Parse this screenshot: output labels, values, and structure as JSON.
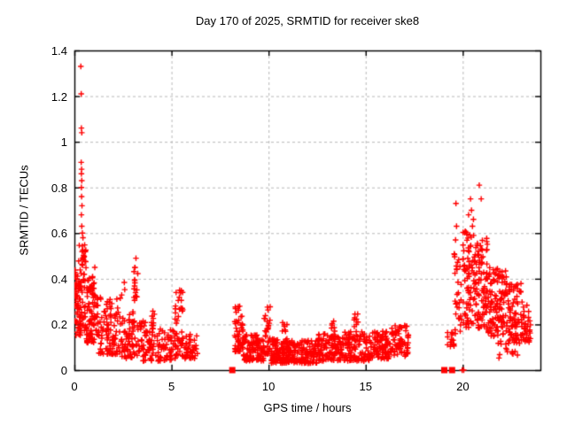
{
  "title": "Day 170 of 2025, SRMTID for receiver ske8",
  "colors": {
    "background": "#ffffff",
    "marker": "#ff0000",
    "grid": "#b9b9b9",
    "axis": "#000000",
    "text": "#000000"
  },
  "chart_data": {
    "type": "scatter",
    "title": "Day 170 of 2025, SRMTID for receiver ske8",
    "xlabel": "GPS time / hours",
    "ylabel": "SRMTID / TECUs",
    "xlim": [
      0,
      24
    ],
    "ylim": [
      0,
      1.4
    ],
    "xticks": [
      {
        "v": 0,
        "label": "0"
      },
      {
        "v": 5,
        "label": "5"
      },
      {
        "v": 10,
        "label": "10"
      },
      {
        "v": 15,
        "label": "15"
      },
      {
        "v": 20,
        "label": "20"
      }
    ],
    "yticks": [
      {
        "v": 0,
        "label": "0"
      },
      {
        "v": 0.2,
        "label": "0.2"
      },
      {
        "v": 0.4,
        "label": "0.4"
      },
      {
        "v": 0.6,
        "label": "0.6"
      },
      {
        "v": 0.8,
        "label": "0.8"
      },
      {
        "v": 1.0,
        "label": "1"
      },
      {
        "v": 1.2,
        "label": "1.2"
      },
      {
        "v": 1.4,
        "label": "1.4"
      }
    ],
    "grid": true,
    "legend": "none",
    "marker": "plus",
    "marker_color": "#ff0000",
    "seed": 42,
    "segments": [
      {
        "x0": 0.0,
        "x1": 0.15,
        "n": 22,
        "y_min": 0.2,
        "y_max": 0.47,
        "bias": 1.0
      },
      {
        "x0": 0.05,
        "x1": 0.35,
        "n": 25,
        "y_min": 0.15,
        "y_max": 0.4,
        "bias": 1.2
      },
      {
        "x0": 0.15,
        "x1": 0.6,
        "n": 45,
        "y_min": 0.15,
        "y_max": 0.55,
        "bias": 1.4
      },
      {
        "x0": 0.3,
        "x1": 0.6,
        "n": 20,
        "y_min": 0.35,
        "y_max": 0.55,
        "bias": 1.0
      },
      {
        "x0": 0.6,
        "x1": 1.2,
        "n": 85,
        "y_min": 0.12,
        "y_max": 0.42,
        "bias": 1.6
      },
      {
        "x0": 1.2,
        "x1": 2.2,
        "n": 95,
        "y_min": 0.07,
        "y_max": 0.32,
        "bias": 1.7
      },
      {
        "x0": 2.2,
        "x1": 2.6,
        "n": 30,
        "y_min": 0.06,
        "y_max": 0.42,
        "bias": 1.8
      },
      {
        "x0": 2.6,
        "x1": 3.0,
        "n": 35,
        "y_min": 0.05,
        "y_max": 0.25,
        "bias": 1.5
      },
      {
        "x0": 3.0,
        "x1": 3.3,
        "n": 18,
        "y_min": 0.22,
        "y_max": 0.45,
        "bias": 1.0
      },
      {
        "x0": 3.0,
        "x1": 3.4,
        "n": 25,
        "y_min": 0.06,
        "y_max": 0.22,
        "bias": 1.3
      },
      {
        "x0": 3.4,
        "x1": 4.1,
        "n": 55,
        "y_min": 0.04,
        "y_max": 0.22,
        "bias": 1.5
      },
      {
        "x0": 3.9,
        "x1": 4.15,
        "n": 12,
        "y_min": 0.1,
        "y_max": 0.26,
        "bias": 1.0
      },
      {
        "x0": 4.15,
        "x1": 5.1,
        "n": 55,
        "y_min": 0.04,
        "y_max": 0.18,
        "bias": 1.4
      },
      {
        "x0": 5.1,
        "x1": 5.6,
        "n": 30,
        "y_min": 0.1,
        "y_max": 0.35,
        "bias": 1.3
      },
      {
        "x0": 5.15,
        "x1": 5.6,
        "n": 20,
        "y_min": 0.05,
        "y_max": 0.15,
        "bias": 1.2
      },
      {
        "x0": 5.6,
        "x1": 6.35,
        "n": 45,
        "y_min": 0.05,
        "y_max": 0.16,
        "bias": 1.4
      },
      {
        "x0": 8.25,
        "x1": 8.7,
        "n": 55,
        "y_min": 0.08,
        "y_max": 0.28,
        "bias": 1.6
      },
      {
        "x0": 8.7,
        "x1": 9.4,
        "n": 70,
        "y_min": 0.04,
        "y_max": 0.16,
        "bias": 1.4
      },
      {
        "x0": 9.4,
        "x1": 9.75,
        "n": 35,
        "y_min": 0.04,
        "y_max": 0.14,
        "bias": 1.3
      },
      {
        "x0": 9.75,
        "x1": 10.1,
        "n": 35,
        "y_min": 0.07,
        "y_max": 0.28,
        "bias": 1.6
      },
      {
        "x0": 10.1,
        "x1": 11.0,
        "n": 95,
        "y_min": 0.03,
        "y_max": 0.14,
        "bias": 1.3
      },
      {
        "x0": 10.7,
        "x1": 10.95,
        "n": 12,
        "y_min": 0.1,
        "y_max": 0.21,
        "bias": 1.0
      },
      {
        "x0": 11.0,
        "x1": 12.5,
        "n": 130,
        "y_min": 0.03,
        "y_max": 0.13,
        "bias": 1.3
      },
      {
        "x0": 12.5,
        "x1": 13.6,
        "n": 95,
        "y_min": 0.04,
        "y_max": 0.16,
        "bias": 1.3
      },
      {
        "x0": 13.2,
        "x1": 13.45,
        "n": 12,
        "y_min": 0.1,
        "y_max": 0.22,
        "bias": 1.0
      },
      {
        "x0": 13.6,
        "x1": 15.2,
        "n": 130,
        "y_min": 0.04,
        "y_max": 0.17,
        "bias": 1.4
      },
      {
        "x0": 14.4,
        "x1": 14.6,
        "n": 12,
        "y_min": 0.1,
        "y_max": 0.25,
        "bias": 1.0
      },
      {
        "x0": 15.2,
        "x1": 16.3,
        "n": 95,
        "y_min": 0.05,
        "y_max": 0.17,
        "bias": 1.3
      },
      {
        "x0": 16.3,
        "x1": 17.2,
        "n": 75,
        "y_min": 0.06,
        "y_max": 0.2,
        "bias": 1.2
      },
      {
        "x0": 19.2,
        "x1": 19.55,
        "n": 14,
        "y_min": 0.1,
        "y_max": 0.17,
        "bias": 1.0
      },
      {
        "x0": 19.55,
        "x1": 20.0,
        "n": 30,
        "y_min": 0.15,
        "y_max": 0.55,
        "bias": 1.2
      },
      {
        "x0": 20.0,
        "x1": 20.6,
        "n": 75,
        "y_min": 0.18,
        "y_max": 0.62,
        "bias": 1.1
      },
      {
        "x0": 20.6,
        "x1": 21.3,
        "n": 95,
        "y_min": 0.18,
        "y_max": 0.58,
        "bias": 1.2
      },
      {
        "x0": 21.3,
        "x1": 22.3,
        "n": 115,
        "y_min": 0.14,
        "y_max": 0.45,
        "bias": 1.2
      },
      {
        "x0": 22.3,
        "x1": 23.0,
        "n": 75,
        "y_min": 0.1,
        "y_max": 0.38,
        "bias": 1.2
      },
      {
        "x0": 23.0,
        "x1": 23.5,
        "n": 40,
        "y_min": 0.12,
        "y_max": 0.3,
        "bias": 1.1
      },
      {
        "x0": 21.8,
        "x1": 22.9,
        "n": 15,
        "y_min": 0.05,
        "y_max": 0.14,
        "bias": 1.0
      }
    ],
    "outlier_points": [
      [
        0.33,
        1.33
      ],
      [
        0.35,
        1.21
      ],
      [
        0.36,
        1.06
      ],
      [
        0.38,
        1.04
      ],
      [
        0.35,
        0.91
      ],
      [
        0.37,
        0.88
      ],
      [
        0.36,
        0.86
      ],
      [
        0.38,
        0.83
      ],
      [
        0.36,
        0.8
      ],
      [
        0.37,
        0.76
      ],
      [
        0.39,
        0.72
      ],
      [
        0.36,
        0.68
      ],
      [
        0.38,
        0.63
      ],
      [
        0.41,
        0.6
      ],
      [
        0.44,
        0.58
      ],
      [
        1.05,
        0.45
      ],
      [
        3.17,
        0.49
      ],
      [
        19.65,
        0.73
      ],
      [
        19.68,
        0.63
      ],
      [
        19.63,
        0.57
      ],
      [
        20.85,
        0.81
      ],
      [
        20.95,
        0.75
      ],
      [
        20.4,
        0.75
      ],
      [
        20.45,
        0.7
      ],
      [
        20.3,
        0.68
      ],
      [
        20.55,
        0.66
      ],
      [
        20.5,
        0.63
      ],
      [
        22.3,
        0.08
      ]
    ],
    "zero_square_points": [
      [
        8.13,
        0
      ],
      [
        19.05,
        0
      ],
      [
        19.45,
        0
      ]
    ],
    "zero_plus_points": [
      [
        19.97,
        0
      ],
      [
        20.05,
        0
      ]
    ]
  }
}
